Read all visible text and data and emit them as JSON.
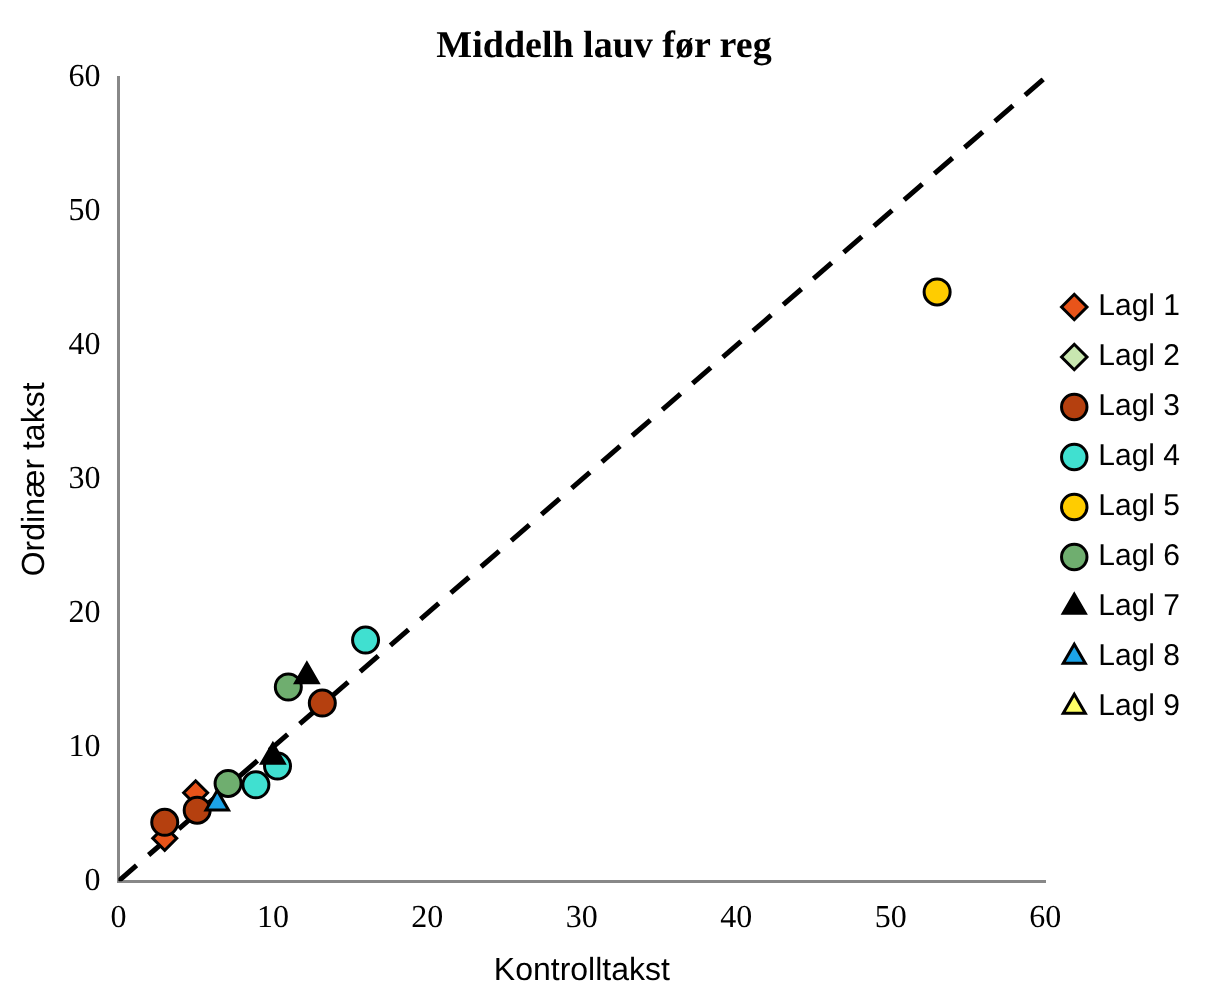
{
  "chart_data": {
    "type": "scatter",
    "title": "Middelh lauv før reg",
    "xlabel": "Kontrolltakst",
    "ylabel": "Ordinær takst",
    "xlim": [
      0,
      60
    ],
    "ylim": [
      0,
      60
    ],
    "xticks": [
      0,
      10,
      20,
      30,
      40,
      50,
      60
    ],
    "yticks": [
      0,
      10,
      20,
      30,
      40,
      50,
      60
    ],
    "grid": false,
    "legend": "right",
    "series": [
      {
        "type": "line",
        "x": [
          0,
          60
        ],
        "values": [
          0,
          60
        ],
        "color": "#000000",
        "line_style": "dashed",
        "marker": "none"
      },
      {
        "name": "Lagl 1",
        "marker": "diamond",
        "color": "#e8541a",
        "x": [
          3.0,
          5.0
        ],
        "values": [
          3.2,
          6.6
        ]
      },
      {
        "name": "Lagl 2",
        "marker": "diamond",
        "color": "#c8e6b0"
      },
      {
        "name": "Lagl 3",
        "marker": "circle",
        "color": "#b5400f",
        "x": [
          3.0,
          5.1,
          13.2
        ],
        "values": [
          4.4,
          5.3,
          13.3
        ]
      },
      {
        "name": "Lagl 4",
        "marker": "circle",
        "color": "#40e0d0",
        "x": [
          16.0,
          8.9,
          10.3
        ],
        "values": [
          18.0,
          7.2,
          8.6
        ]
      },
      {
        "name": "Lagl 5",
        "marker": "circle",
        "color": "#ffcc00",
        "x": [
          53.0
        ],
        "values": [
          44.0
        ]
      },
      {
        "name": "Lagl 6",
        "marker": "circle",
        "color": "#6fae6f",
        "x": [
          11.0,
          7.1
        ],
        "values": [
          14.5,
          7.3
        ]
      },
      {
        "name": "Lagl 7",
        "marker": "triangle",
        "color": "#000000",
        "x": [
          12.2,
          10.0
        ],
        "values": [
          15.3,
          9.3
        ]
      },
      {
        "name": "Lagl 8",
        "marker": "triangle",
        "color": "#1ca3e8",
        "x": [
          6.4
        ],
        "values": [
          5.8
        ]
      },
      {
        "name": "Lagl 9",
        "marker": "triangle",
        "color": "#ffff66"
      }
    ]
  }
}
